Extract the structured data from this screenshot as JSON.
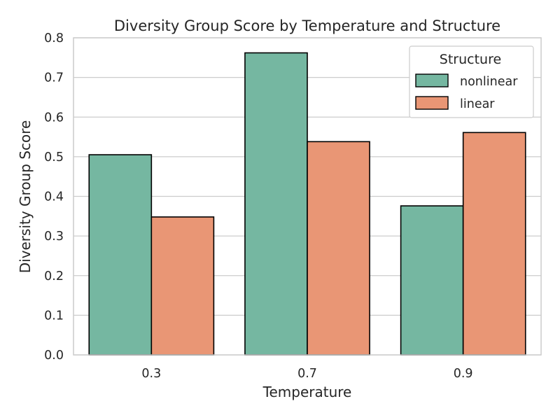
{
  "chart_data": {
    "type": "bar",
    "title": "Diversity Group Score by Temperature and Structure",
    "xlabel": "Temperature",
    "ylabel": "Diversity Group Score",
    "categories": [
      "0.3",
      "0.7",
      "0.9"
    ],
    "series": [
      {
        "name": "nonlinear",
        "values": [
          0.505,
          0.762,
          0.376
        ],
        "color": "#75b7a1"
      },
      {
        "name": "linear",
        "values": [
          0.348,
          0.538,
          0.561
        ],
        "color": "#e99675"
      }
    ],
    "ylim": [
      0,
      0.8
    ],
    "yticks": [
      "0.0",
      "0.1",
      "0.2",
      "0.3",
      "0.4",
      "0.5",
      "0.6",
      "0.7",
      "0.8"
    ],
    "grid": "horizontal",
    "legend": {
      "title": "Structure",
      "placement": "top-right"
    }
  }
}
